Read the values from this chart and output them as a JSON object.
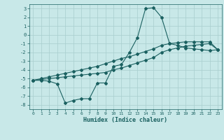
{
  "xlabel": "Humidex (Indice chaleur)",
  "background_color": "#c8e8e8",
  "grid_color": "#a8cece",
  "line_color": "#1a6060",
  "xlim": [
    -0.5,
    23.5
  ],
  "ylim": [
    -8.5,
    3.5
  ],
  "xticks": [
    0,
    1,
    2,
    3,
    4,
    5,
    6,
    7,
    8,
    9,
    10,
    11,
    12,
    13,
    14,
    15,
    16,
    17,
    18,
    19,
    20,
    21,
    22,
    23
  ],
  "yticks": [
    -8,
    -7,
    -6,
    -5,
    -4,
    -3,
    -2,
    -1,
    0,
    1,
    2,
    3
  ],
  "line1_x": [
    0,
    1,
    2,
    3,
    4,
    5,
    6,
    7,
    8,
    9,
    10,
    11,
    12,
    13,
    14,
    15,
    16,
    17,
    18,
    19,
    20,
    21,
    22,
    23
  ],
  "line1_y": [
    -5.2,
    -5.2,
    -5.3,
    -5.6,
    -7.8,
    -7.5,
    -7.3,
    -7.3,
    -5.5,
    -5.5,
    -3.6,
    -3.4,
    -2.0,
    -0.3,
    3.0,
    3.1,
    2.0,
    -1.0,
    -1.2,
    -1.5,
    -1.6,
    -1.7,
    -1.8,
    -1.7
  ],
  "line2_x": [
    0,
    1,
    2,
    3,
    4,
    5,
    6,
    7,
    8,
    9,
    10,
    11,
    12,
    13,
    14,
    15,
    16,
    17,
    18,
    19,
    20,
    21,
    22,
    23
  ],
  "line2_y": [
    -5.2,
    -5.1,
    -5.0,
    -4.9,
    -4.8,
    -4.7,
    -4.6,
    -4.5,
    -4.4,
    -4.3,
    -4.0,
    -3.8,
    -3.5,
    -3.2,
    -2.9,
    -2.6,
    -2.0,
    -1.7,
    -1.5,
    -1.3,
    -1.2,
    -1.1,
    -1.0,
    -1.7
  ],
  "line3_x": [
    0,
    1,
    2,
    3,
    4,
    5,
    6,
    7,
    8,
    9,
    10,
    11,
    12,
    13,
    14,
    15,
    16,
    17,
    18,
    19,
    20,
    21,
    22,
    23
  ],
  "line3_y": [
    -5.2,
    -5.0,
    -4.8,
    -4.6,
    -4.4,
    -4.2,
    -4.0,
    -3.8,
    -3.6,
    -3.3,
    -3.0,
    -2.7,
    -2.5,
    -2.2,
    -1.9,
    -1.6,
    -1.2,
    -1.0,
    -0.9,
    -0.8,
    -0.8,
    -0.8,
    -0.8,
    -1.7
  ]
}
